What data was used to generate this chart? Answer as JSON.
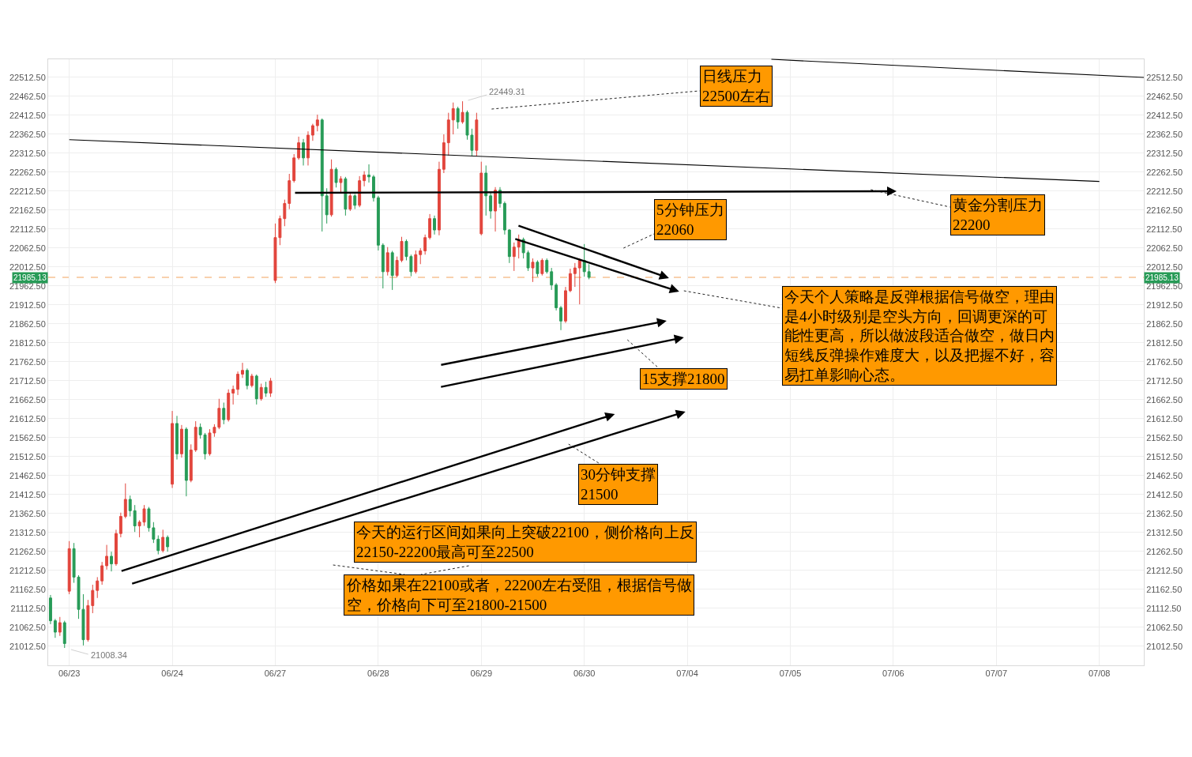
{
  "chart_data": {
    "type": "candlestick",
    "categories": [
      null,
      null,
      null,
      null,
      "06/23",
      null,
      null,
      null,
      null,
      null,
      null,
      null,
      null,
      null,
      null,
      null,
      null,
      null,
      null,
      null,
      null,
      null,
      null,
      null,
      null,
      null,
      "06/24",
      null,
      null,
      null,
      null,
      null,
      null,
      null,
      null,
      null,
      null,
      null,
      null,
      null,
      null,
      null,
      null,
      null,
      null,
      null,
      null,
      null,
      "06/27",
      null,
      null,
      null,
      null,
      null,
      null,
      null,
      null,
      null,
      null,
      null,
      null,
      null,
      null,
      null,
      null,
      null,
      null,
      null,
      null,
      null,
      "06/28",
      null,
      null,
      null,
      null,
      null,
      null,
      null,
      null,
      null,
      null,
      null,
      null,
      null,
      null,
      null,
      null,
      null,
      null,
      null,
      null,
      null,
      "06/29",
      null,
      null,
      null,
      null,
      null,
      null,
      null,
      null,
      null,
      null,
      null,
      null,
      null,
      null,
      null,
      null,
      null,
      null,
      null,
      null,
      null,
      "06/30",
      null,
      null,
      null,
      null,
      null,
      null,
      null,
      null,
      null,
      null,
      null,
      null,
      null,
      null,
      null,
      null,
      null,
      null,
      null,
      null,
      null,
      "07/04",
      null,
      null,
      null,
      null,
      null,
      null,
      null,
      null,
      null,
      null,
      null,
      null,
      null,
      null,
      null,
      null,
      null,
      null,
      null,
      null,
      null,
      "07/05",
      null,
      null,
      null,
      null,
      null,
      null,
      null,
      null,
      null,
      null,
      null,
      null,
      null,
      null,
      null,
      null,
      null,
      null,
      null,
      null,
      null,
      "07/06",
      null,
      null,
      null,
      null,
      null,
      null,
      null,
      null,
      null,
      null,
      null,
      null,
      null,
      null,
      null,
      null,
      null,
      null,
      null,
      null,
      null,
      "07/07",
      null,
      null,
      null,
      null,
      null,
      null,
      null,
      null,
      null,
      null,
      null,
      null,
      null,
      null,
      null,
      null,
      null,
      null,
      null,
      null,
      null,
      "07/08",
      null,
      null,
      null,
      null,
      null,
      null,
      null,
      null,
      null
    ],
    "ohlc": [
      [
        21140,
        21148,
        21071,
        21080
      ],
      [
        21080,
        21085,
        21035,
        21050
      ],
      [
        21050,
        21090,
        21040,
        21075
      ],
      [
        21075,
        21080,
        21008.34,
        21020
      ],
      [
        21158,
        21290,
        21150,
        21270
      ],
      [
        21270,
        21285,
        21180,
        21195
      ],
      [
        21195,
        21200,
        21085,
        21110
      ],
      [
        21110,
        21150,
        21015,
        21030
      ],
      [
        21030,
        21135,
        21025,
        21120
      ],
      [
        21120,
        21175,
        21100,
        21160
      ],
      [
        21160,
        21195,
        21140,
        21185
      ],
      [
        21185,
        21235,
        21175,
        21225
      ],
      [
        21225,
        21280,
        21215,
        21250
      ],
      [
        21250,
        21262,
        21210,
        21230
      ],
      [
        21230,
        21320,
        21225,
        21310
      ],
      [
        21310,
        21365,
        21300,
        21355
      ],
      [
        21355,
        21442,
        21350,
        21400
      ],
      [
        21400,
        21410,
        21355,
        21370
      ],
      [
        21370,
        21385,
        21314,
        21330
      ],
      [
        21330,
        21345,
        21300,
        21340
      ],
      [
        21340,
        21385,
        21330,
        21375
      ],
      [
        21375,
        21380,
        21315,
        21325
      ],
      [
        21325,
        21340,
        21285,
        21295
      ],
      [
        21295,
        21305,
        21255,
        21265
      ],
      [
        21265,
        21320,
        21260,
        21300
      ],
      [
        21300,
        21305,
        21262,
        21275
      ],
      [
        21440,
        21633,
        21430,
        21600
      ],
      [
        21600,
        21620,
        21505,
        21520
      ],
      [
        21520,
        21596,
        21510,
        21585
      ],
      [
        21585,
        21590,
        21408,
        21450
      ],
      [
        21450,
        21545,
        21445,
        21530
      ],
      [
        21530,
        21606,
        21525,
        21590
      ],
      [
        21590,
        21600,
        21560,
        21570
      ],
      [
        21570,
        21575,
        21505,
        21520
      ],
      [
        21520,
        21585,
        21515,
        21575
      ],
      [
        21575,
        21598,
        21565,
        21590
      ],
      [
        21590,
        21665,
        21585,
        21640
      ],
      [
        21640,
        21655,
        21598,
        21610
      ],
      [
        21610,
        21690,
        21605,
        21680
      ],
      [
        21680,
        21700,
        21650,
        21690
      ],
      [
        21690,
        21737,
        21675,
        21730
      ],
      [
        21730,
        21760,
        21720,
        21740
      ],
      [
        21740,
        21745,
        21690,
        21700
      ],
      [
        21700,
        21731,
        21695,
        21725
      ],
      [
        21725,
        21729,
        21650,
        21665
      ],
      [
        21665,
        21705,
        21660,
        21695
      ],
      [
        21695,
        21710,
        21670,
        21680
      ],
      [
        21680,
        21720,
        21670,
        21712
      ],
      [
        21977,
        22127,
        21970,
        22090
      ],
      [
        22090,
        22148,
        22070,
        22140
      ],
      [
        22140,
        22190,
        22120,
        22180
      ],
      [
        22180,
        22258,
        22165,
        22240
      ],
      [
        22240,
        22310,
        22235,
        22300
      ],
      [
        22300,
        22356,
        22295,
        22340
      ],
      [
        22340,
        22350,
        22280,
        22300
      ],
      [
        22300,
        22370,
        22280,
        22360
      ],
      [
        22360,
        22390,
        22345,
        22385
      ],
      [
        22385,
        22414,
        22370,
        22400
      ],
      [
        22400,
        22404,
        22106,
        22200
      ],
      [
        22200,
        22220,
        22127,
        22150
      ],
      [
        22150,
        22296,
        22145,
        22270
      ],
      [
        22270,
        22275,
        22222,
        22235
      ],
      [
        22235,
        22252,
        22210,
        22245
      ],
      [
        22245,
        22250,
        22148,
        22165
      ],
      [
        22165,
        22210,
        22160,
        22200
      ],
      [
        22200,
        22205,
        22165,
        22175
      ],
      [
        22175,
        22252,
        22170,
        22240
      ],
      [
        22240,
        22265,
        22225,
        22255
      ],
      [
        22255,
        22283,
        22235,
        22250
      ],
      [
        22250,
        22255,
        22185,
        22195
      ],
      [
        22195,
        22200,
        22056,
        22070
      ],
      [
        22070,
        22075,
        21956,
        22000
      ],
      [
        22000,
        22065,
        21990,
        22050
      ],
      [
        22050,
        22055,
        21952,
        21990
      ],
      [
        21990,
        22040,
        21985,
        22030
      ],
      [
        22030,
        22092,
        22025,
        22080
      ],
      [
        22080,
        22085,
        22030,
        22040
      ],
      [
        22040,
        22045,
        21988,
        22000
      ],
      [
        22000,
        22056,
        21995,
        22045
      ],
      [
        22045,
        22062,
        22020,
        22055
      ],
      [
        22055,
        22098,
        22045,
        22090
      ],
      [
        22090,
        22152,
        22085,
        22140
      ],
      [
        22140,
        22148,
        22098,
        22110
      ],
      [
        22110,
        22290,
        22096,
        22270
      ],
      [
        22270,
        22362,
        22260,
        22340
      ],
      [
        22340,
        22419,
        22306,
        22400
      ],
      [
        22400,
        22446,
        22362,
        22430
      ],
      [
        22430,
        22435,
        22377,
        22395
      ],
      [
        22395,
        22449.31,
        22390,
        22420
      ],
      [
        22420,
        22425,
        22348,
        22360
      ],
      [
        22360,
        22377,
        22306,
        22320
      ],
      [
        22320,
        22419,
        22304,
        22400
      ],
      [
        22100,
        22290,
        22096,
        22260
      ],
      [
        22260,
        22280,
        22148,
        22200
      ],
      [
        22200,
        22210,
        22140,
        22160
      ],
      [
        22160,
        22223,
        22106,
        22215
      ],
      [
        22215,
        22223,
        22169,
        22180
      ],
      [
        22180,
        22185,
        22098,
        22110
      ],
      [
        22110,
        22112,
        22023,
        22040
      ],
      [
        22040,
        22077,
        22002,
        22065
      ],
      [
        22065,
        22098,
        22035,
        22085
      ],
      [
        22085,
        22090,
        22035,
        22050
      ],
      [
        22050,
        22056,
        22002,
        22010
      ],
      [
        22010,
        22035,
        21973,
        22025
      ],
      [
        22025,
        22030,
        21987,
        21995
      ],
      [
        21995,
        22035,
        21990,
        22030
      ],
      [
        22030,
        22035,
        21995,
        22000
      ],
      [
        22000,
        22010,
        21952,
        21965
      ],
      [
        21965,
        21970,
        21898,
        21905
      ],
      [
        21905,
        21910,
        21846,
        21870
      ],
      [
        21870,
        21960,
        21865,
        21950
      ],
      [
        21950,
        22008,
        21946,
        21995
      ],
      [
        21995,
        22023,
        21960,
        22010
      ],
      [
        22010,
        22035,
        21914,
        22030
      ],
      [
        22030,
        22073,
        21987,
        22000
      ],
      [
        22000,
        22020,
        21980,
        21985.13
      ],
      null,
      null,
      null,
      null,
      null,
      null,
      null,
      null,
      null,
      null,
      null,
      null,
      null,
      null,
      null,
      null,
      null,
      null,
      null,
      null,
      null,
      null,
      null,
      null,
      null,
      null,
      null,
      null,
      null,
      null,
      null,
      null,
      null,
      null,
      null,
      null,
      null,
      null,
      null,
      null,
      null,
      null,
      null,
      null,
      null,
      null,
      null,
      null,
      null,
      null,
      null,
      null,
      null,
      null,
      null,
      null,
      null,
      null,
      null,
      null,
      null,
      null,
      null,
      null,
      null,
      null,
      null,
      null,
      null,
      null,
      null,
      null,
      null,
      null,
      null,
      null,
      null,
      null,
      null,
      null,
      null,
      null,
      null,
      null,
      null,
      null,
      null,
      null,
      null,
      null,
      null,
      null,
      null,
      null,
      null,
      null,
      null,
      null,
      null,
      null,
      null,
      null,
      null,
      null,
      null,
      null,
      null,
      null,
      null,
      null,
      null,
      null,
      null,
      null,
      null,
      null,
      null,
      null
    ],
    "colors": [
      "#279b57",
      "#279b57",
      "#e2453c",
      "#279b57",
      "#e2453c",
      "#279b57",
      "#279b57",
      "#279b57",
      "#e2453c",
      "#e2453c",
      "#e2453c",
      "#e2453c",
      "#e2453c",
      "#279b57",
      "#e2453c",
      "#e2453c",
      "#e2453c",
      "#279b57",
      "#279b57",
      "#e2453c",
      "#e2453c",
      "#279b57",
      "#279b57",
      "#279b57",
      "#e2453c",
      "#279b57",
      "#e2453c",
      "#279b57",
      "#e2453c",
      "#279b57",
      "#e2453c",
      "#e2453c",
      "#279b57",
      "#279b57",
      "#e2453c",
      "#e2453c",
      "#e2453c",
      "#279b57",
      "#e2453c",
      "#e2453c",
      "#e2453c",
      "#e2453c",
      "#279b57",
      "#e2453c",
      "#279b57",
      "#e2453c",
      "#279b57",
      "#e2453c",
      "#e2453c",
      "#e2453c",
      "#e2453c",
      "#e2453c",
      "#e2453c",
      "#e2453c",
      "#279b57",
      "#e2453c",
      "#e2453c",
      "#e2453c",
      "#279b57",
      "#279b57",
      "#e2453c",
      "#279b57",
      "#e2453c",
      "#279b57",
      "#e2453c",
      "#279b57",
      "#e2453c",
      "#e2453c",
      "#279b57",
      "#279b57",
      "#279b57",
      "#279b57",
      "#e2453c",
      "#279b57",
      "#e2453c",
      "#e2453c",
      "#279b57",
      "#279b57",
      "#e2453c",
      "#e2453c",
      "#e2453c",
      "#e2453c",
      "#279b57",
      "#e2453c",
      "#e2453c",
      "#e2453c",
      "#e2453c",
      "#279b57",
      "#e2453c",
      "#279b57",
      "#279b57",
      "#e2453c",
      "#e2453c",
      "#279b57",
      "#279b57",
      "#e2453c",
      "#279b57",
      "#279b57",
      "#279b57",
      "#e2453c",
      "#e2453c",
      "#279b57",
      "#279b57",
      "#e2453c",
      "#279b57",
      "#e2453c",
      "#279b57",
      "#279b57",
      "#279b57",
      "#279b57",
      "#e2453c",
      "#e2453c",
      "#e2453c",
      "#e2453c",
      "#279b57",
      "#279b57",
      null,
      null,
      null,
      null,
      null,
      null,
      null,
      null,
      null,
      null,
      null,
      null,
      null,
      null,
      null,
      null,
      null,
      null,
      null,
      null,
      null,
      null,
      null,
      null,
      null,
      null,
      null,
      null,
      null,
      null,
      null,
      null,
      null,
      null,
      null,
      null,
      null,
      null,
      null,
      null,
      null,
      null,
      null,
      null,
      null,
      null,
      null,
      null,
      null,
      null,
      null,
      null,
      null,
      null,
      null,
      null,
      null,
      null,
      null,
      null,
      null,
      null,
      null,
      null,
      null,
      null,
      null,
      null,
      null,
      null,
      null,
      null,
      null,
      null,
      null,
      null,
      null,
      null,
      null,
      null,
      null,
      null,
      null,
      null,
      null,
      null,
      null,
      null,
      null,
      null,
      null,
      null,
      null,
      null,
      null,
      null,
      null,
      null,
      null,
      null,
      null,
      null,
      null,
      null,
      null,
      null,
      null,
      null,
      null,
      null,
      null,
      null,
      null,
      null,
      null,
      null,
      null,
      null
    ],
    "ylim": [
      20962.5,
      22560
    ],
    "yticks": [
      {
        "value": 21012.5,
        "label": "21012.50"
      },
      {
        "value": 21062.5,
        "label": "21062.50"
      },
      {
        "value": 21112.5,
        "label": "21112.50"
      },
      {
        "value": 21162.5,
        "label": "21162.50"
      },
      {
        "value": 21212.5,
        "label": "21212.50"
      },
      {
        "value": 21262.5,
        "label": "21262.50"
      },
      {
        "value": 21312.5,
        "label": "21312.50"
      },
      {
        "value": 21362.5,
        "label": "21362.50"
      },
      {
        "value": 21412.5,
        "label": "21412.50"
      },
      {
        "value": 21462.5,
        "label": "21462.50"
      },
      {
        "value": 21512.5,
        "label": "21512.50"
      },
      {
        "value": 21562.5,
        "label": "21562.50"
      },
      {
        "value": 21612.5,
        "label": "21612.50"
      },
      {
        "value": 21662.5,
        "label": "21662.50"
      },
      {
        "value": 21712.5,
        "label": "21712.50"
      },
      {
        "value": 21762.5,
        "label": "21762.50"
      },
      {
        "value": 21812.5,
        "label": "21812.50"
      },
      {
        "value": 21862.5,
        "label": "21862.50"
      },
      {
        "value": 21912.5,
        "label": "21912.50"
      },
      {
        "value": 21962.5,
        "label": "21962.50"
      },
      {
        "value": 22012.5,
        "label": "22012.50"
      },
      {
        "value": 22062.5,
        "label": "22062.50"
      },
      {
        "value": 22112.5,
        "label": "22112.50"
      },
      {
        "value": 22162.5,
        "label": "22162.50"
      },
      {
        "value": 22212.5,
        "label": "22212.50"
      },
      {
        "value": 22262.5,
        "label": "22262.50"
      },
      {
        "value": 22312.5,
        "label": "22312.50"
      },
      {
        "value": 22362.5,
        "label": "22362.50"
      },
      {
        "value": 22412.5,
        "label": "22412.50"
      },
      {
        "value": 22462.5,
        "label": "22462.50"
      },
      {
        "value": 22512.5,
        "label": "22512.50"
      }
    ],
    "y2lim": [
      20962.5,
      22560
    ],
    "y2ticks": [
      {
        "value": 21012.5,
        "label": "21012.50"
      },
      {
        "value": 21062.5,
        "label": "21062.50"
      },
      {
        "value": 21112.5,
        "label": "21112.50"
      },
      {
        "value": 21162.5,
        "label": "21162.50"
      },
      {
        "value": 21212.5,
        "label": "21212.50"
      },
      {
        "value": 21262.5,
        "label": "21262.50"
      },
      {
        "value": 21312.5,
        "label": "21312.50"
      },
      {
        "value": 21362.5,
        "label": "21362.50"
      },
      {
        "value": 21412.5,
        "label": "21412.50"
      },
      {
        "value": 21462.5,
        "label": "21462.50"
      },
      {
        "value": 21512.5,
        "label": "21512.50"
      },
      {
        "value": 21562.5,
        "label": "21562.50"
      },
      {
        "value": 21612.5,
        "label": "21612.50"
      },
      {
        "value": 21662.5,
        "label": "21662.50"
      },
      {
        "value": 21712.5,
        "label": "21712.50"
      },
      {
        "value": 21762.5,
        "label": "21762.50"
      },
      {
        "value": 21812.5,
        "label": "21812.50"
      },
      {
        "value": 21862.5,
        "label": "21862.50"
      },
      {
        "value": 21912.5,
        "label": "21912.50"
      },
      {
        "value": 21962.5,
        "label": "21962.50"
      },
      {
        "value": 22012.5,
        "label": "22012.50"
      },
      {
        "value": 22062.5,
        "label": "22062.50"
      },
      {
        "value": 22112.5,
        "label": "22112.50"
      },
      {
        "value": 22162.5,
        "label": "22162.50"
      },
      {
        "value": 22212.5,
        "label": "22212.50"
      },
      {
        "value": 22262.5,
        "label": "22262.50"
      },
      {
        "value": 22312.5,
        "label": "22312.50"
      },
      {
        "value": 22362.5,
        "label": "22362.50"
      },
      {
        "value": 22412.5,
        "label": "22412.50"
      },
      {
        "value": 22462.5,
        "label": "22462.50"
      },
      {
        "value": 22512.5,
        "label": "22512.50"
      }
    ],
    "grid": true,
    "ref_lines": [
      {
        "axis": "y",
        "value": 21985.13,
        "label": "21985.13",
        "color": "#f2a25c",
        "line_style": "dashed"
      }
    ],
    "series": [
      {
        "type": "line",
        "x": [
          "06/23",
          "07/08"
        ],
        "values": [
          22348,
          22238
        ],
        "color": "#000000"
      }
    ],
    "annotations": [
      "22449.31",
      "日线压力\n22500左右",
      "5分钟压力\n22060",
      "黄金分割压力\n22200",
      "今天个人策略是反弹根据信号做空，理由是4小时级别是空头方向，回调更深的可能性更高，所以做波段适合做空，做日内短线反弹操作难度大，以及把握不好，容易扛单影响心态。",
      "15支撑21800",
      "30分钟支撑\n21500",
      "今天的运行区间如果向上突破22100，侧价格向上反\n22150-22200最高可至22500",
      "价格如果在22100或者，22200左右受阻，根据信号做空，价格向下可至21800-21500",
      "21008.34"
    ]
  }
}
